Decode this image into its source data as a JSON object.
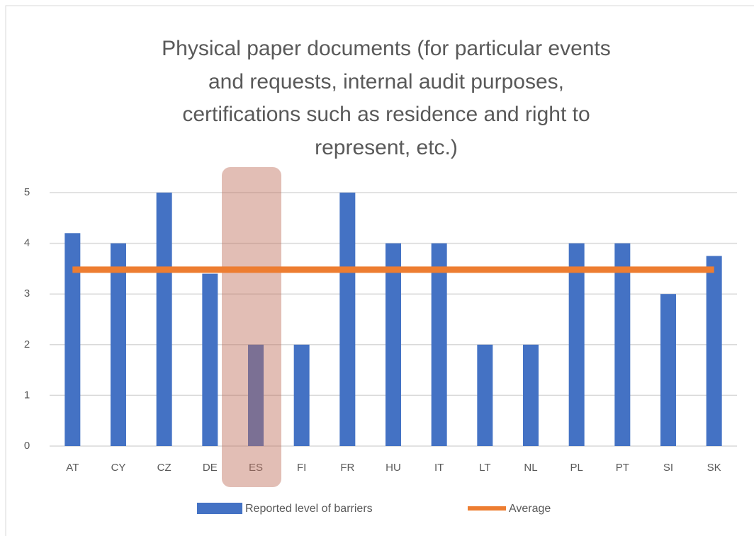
{
  "chart_data": {
    "type": "bar",
    "title": [
      "Physical paper documents (for particular events",
      "and requests, internal audit purposes,",
      "certifications such as residence and right to",
      "represent, etc.)"
    ],
    "categories": [
      "AT",
      "CY",
      "CZ",
      "DE",
      "ES",
      "FI",
      "FR",
      "HU",
      "IT",
      "LT",
      "NL",
      "PL",
      "PT",
      "SI",
      "SK"
    ],
    "series": [
      {
        "name": "Reported level of barriers",
        "type": "bar",
        "color": "#4472c4",
        "values": [
          4.2,
          4,
          5,
          3.4,
          2,
          2,
          5,
          4,
          4,
          2,
          2,
          4,
          4,
          3,
          3.75
        ]
      },
      {
        "name": "Average",
        "type": "line",
        "color": "#ed7d31",
        "values": [
          3.48,
          3.48,
          3.48,
          3.48,
          3.48,
          3.48,
          3.48,
          3.48,
          3.48,
          3.48,
          3.48,
          3.48,
          3.48,
          3.48,
          3.48
        ]
      }
    ],
    "ylim": [
      0,
      5
    ],
    "yticks": [
      0,
      1,
      2,
      3,
      4,
      5
    ],
    "grid": true,
    "legend": "bottom"
  }
}
